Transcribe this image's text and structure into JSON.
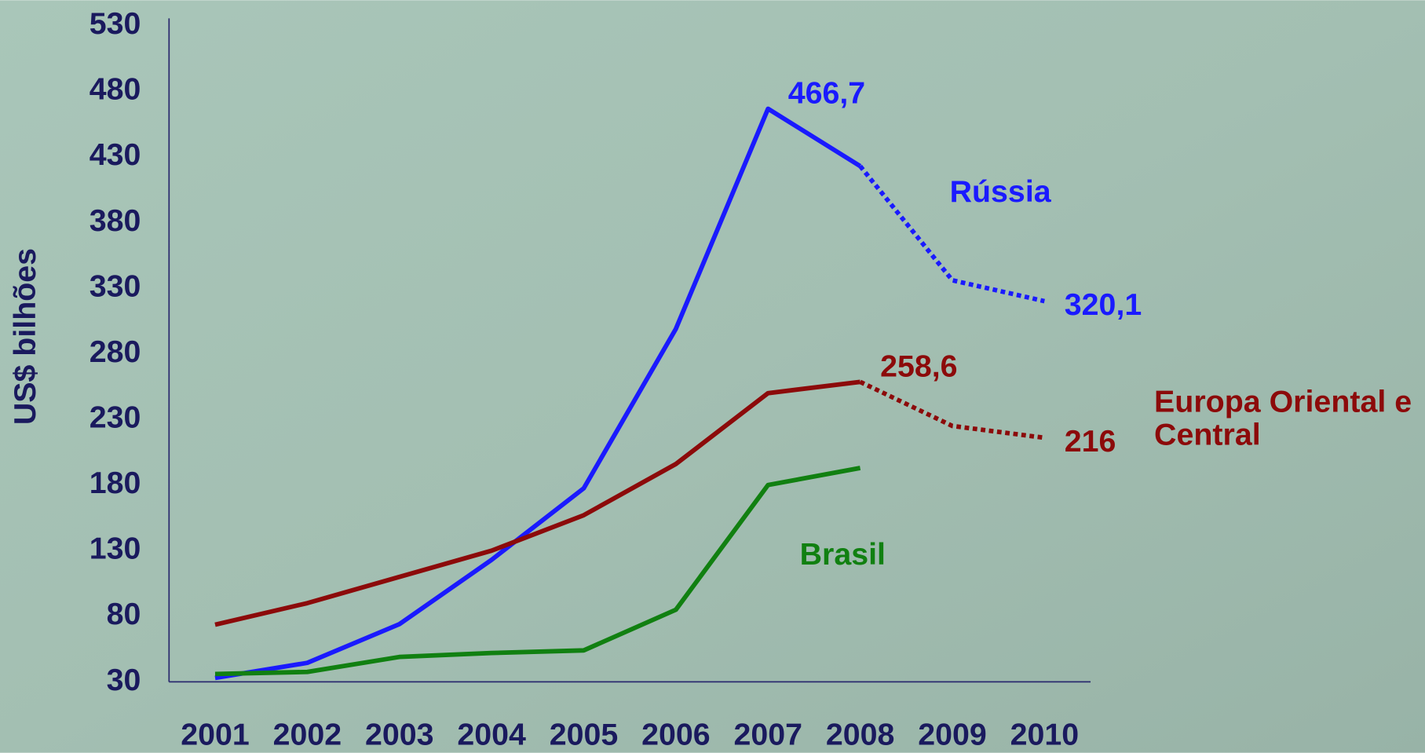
{
  "chart_data": {
    "type": "line",
    "ylabel": "US$ bilhões",
    "categories": [
      "2001",
      "2002",
      "2003",
      "2004",
      "2005",
      "2006",
      "2007",
      "2008",
      "2009",
      "2010"
    ],
    "series": [
      {
        "name": "Rússia",
        "color": "#1a1aff",
        "dashed_after": 7,
        "values": [
          33,
          44.5,
          74,
          123,
          177.5,
          299,
          466.7,
          423,
          336,
          320.1
        ],
        "value_labels": [
          null,
          null,
          null,
          null,
          null,
          null,
          "466,7",
          null,
          null,
          "320,1"
        ]
      },
      {
        "name": "Europa Oriental e Central",
        "color": "#8c0a0a",
        "dashed_after": 7,
        "values": [
          73.6,
          90,
          110,
          130,
          157,
          196,
          250,
          258.6,
          225,
          216
        ],
        "value_labels": [
          null,
          null,
          null,
          null,
          null,
          null,
          null,
          "258,6",
          null,
          "216"
        ]
      },
      {
        "name": "Brasil",
        "color": "#118011",
        "values": [
          36,
          37.6,
          49,
          52,
          54,
          85,
          180,
          193,
          null,
          null
        ]
      }
    ],
    "ylim": [
      30,
      530
    ],
    "yticks": [
      30,
      80,
      130,
      180,
      230,
      280,
      330,
      380,
      430,
      480,
      530
    ],
    "grid": false
  }
}
